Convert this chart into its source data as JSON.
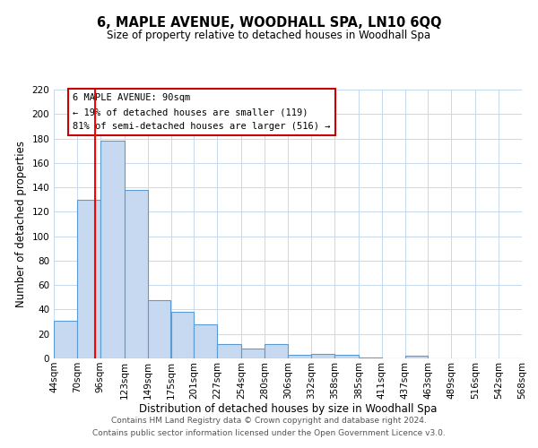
{
  "title": "6, MAPLE AVENUE, WOODHALL SPA, LN10 6QQ",
  "subtitle": "Size of property relative to detached houses in Woodhall Spa",
  "xlabel": "Distribution of detached houses by size in Woodhall Spa",
  "ylabel": "Number of detached properties",
  "bin_labels": [
    "44sqm",
    "70sqm",
    "96sqm",
    "123sqm",
    "149sqm",
    "175sqm",
    "201sqm",
    "227sqm",
    "254sqm",
    "280sqm",
    "306sqm",
    "332sqm",
    "358sqm",
    "385sqm",
    "411sqm",
    "437sqm",
    "463sqm",
    "489sqm",
    "516sqm",
    "542sqm",
    "568sqm"
  ],
  "bar_heights": [
    31,
    130,
    178,
    138,
    48,
    38,
    28,
    12,
    8,
    12,
    3,
    4,
    3,
    1,
    0,
    2,
    0,
    0,
    0,
    0,
    1
  ],
  "bar_color": "#c6d9f0",
  "bar_edge_color": "#5b9bd5",
  "reference_line_x": 90,
  "reference_line_label": "6 MAPLE AVENUE: 90sqm",
  "annotation_line1": "← 19% of detached houses are smaller (119)",
  "annotation_line2": "81% of semi-detached houses are larger (516) →",
  "ylim": [
    0,
    220
  ],
  "yticks": [
    0,
    20,
    40,
    60,
    80,
    100,
    120,
    140,
    160,
    180,
    200,
    220
  ],
  "bin_edges": [
    44,
    70,
    96,
    123,
    149,
    175,
    201,
    227,
    254,
    280,
    306,
    332,
    358,
    385,
    411,
    437,
    463,
    489,
    516,
    542,
    568
  ],
  "footer_line1": "Contains HM Land Registry data © Crown copyright and database right 2024.",
  "footer_line2": "Contains public sector information licensed under the Open Government Licence v3.0.",
  "bg_color": "#ffffff",
  "grid_color": "#c6d9f0",
  "annotation_box_color": "#ffffff",
  "annotation_box_edge": "#cc0000",
  "title_fontsize": 10.5,
  "subtitle_fontsize": 8.5,
  "xlabel_fontsize": 8.5,
  "ylabel_fontsize": 8.5,
  "tick_fontsize": 7.5,
  "footer_fontsize": 6.5
}
